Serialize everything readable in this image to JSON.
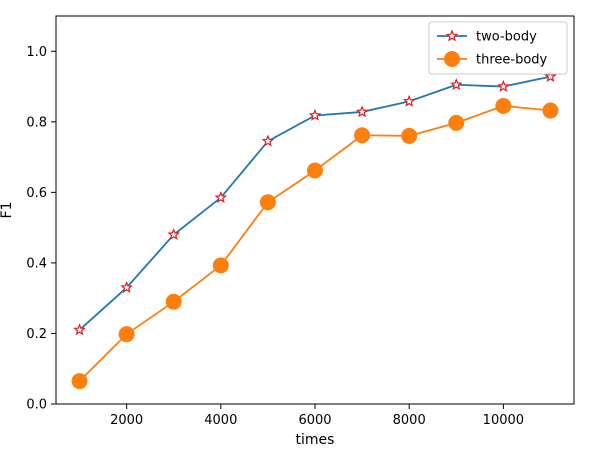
{
  "chart_data": {
    "type": "line",
    "xlabel": "times",
    "ylabel": "F1",
    "xlim": [
      500,
      11500
    ],
    "ylim": [
      0.0,
      1.1
    ],
    "x_ticks": [
      2000,
      4000,
      6000,
      8000,
      10000
    ],
    "y_ticks": [
      0.0,
      0.2,
      0.4,
      0.6,
      0.8,
      1.0
    ],
    "x_tick_labels": [
      "2000",
      "4000",
      "6000",
      "8000",
      "10000"
    ],
    "y_tick_labels": [
      "0.0",
      "0.2",
      "0.4",
      "0.6",
      "0.8",
      "1.0"
    ],
    "grid": false,
    "legend_position": "top-right",
    "x": [
      1000,
      2000,
      3000,
      4000,
      5000,
      6000,
      7000,
      8000,
      9000,
      10000,
      11000
    ],
    "series": [
      {
        "name": "two-body",
        "values": [
          0.21,
          0.33,
          0.48,
          0.585,
          0.745,
          0.818,
          0.828,
          0.858,
          0.905,
          0.9,
          0.928
        ],
        "color": "#1f77b4",
        "marker": "star",
        "marker_edge_color": "#e31a1c"
      },
      {
        "name": "three-body",
        "values": [
          0.065,
          0.198,
          0.29,
          0.393,
          0.572,
          0.662,
          0.762,
          0.76,
          0.797,
          0.845,
          0.832
        ],
        "color": "#ff7f0e",
        "marker": "circle",
        "marker_edge_color": "#ff7f0e"
      }
    ]
  }
}
